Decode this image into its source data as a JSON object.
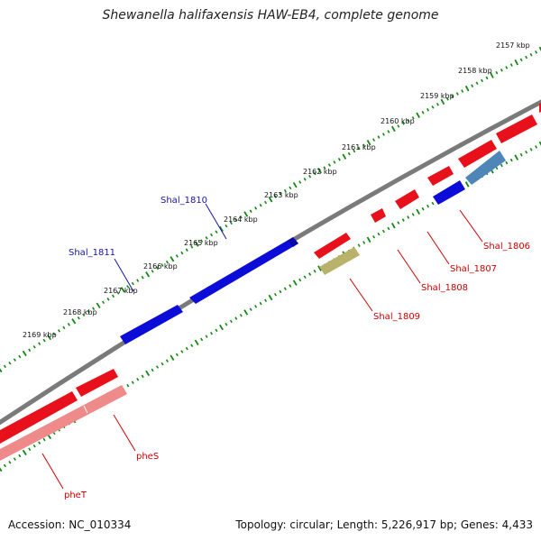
{
  "title": "Shewanella halifaxensis HAW-EB4, complete genome",
  "footer": {
    "accession": "Accession: NC_010334",
    "summary": "Topology: circular; Length: 5,226,917 bp; Genes: 4,433"
  },
  "colors": {
    "backbone": "#7a7a7a",
    "ticks": "#118811",
    "forward_gene": "#e8101a",
    "reverse_gene": "#1010e0",
    "pseudo_light_red": "#ee8a8a",
    "olive": "#b8b26a",
    "steel_blue": "#4f86b8",
    "label_red": "#cc0000",
    "label_blue": "#1515a8"
  },
  "ruler": {
    "labels": [
      "2157 kbp",
      "2158 kbp",
      "2159 kbp",
      "2160 kbp",
      "2161 kbp",
      "2162 kbp",
      "2163 kbp",
      "2164 kbp",
      "2165 kbp",
      "2166 kbp",
      "2167 kbp",
      "2168 kbp",
      "2169 kbp"
    ]
  },
  "genes": [
    {
      "name": "Shal_1806",
      "strand": "forward"
    },
    {
      "name": "Shal_1807",
      "strand": "forward"
    },
    {
      "name": "Shal_1808",
      "strand": "forward"
    },
    {
      "name": "Shal_1809",
      "strand": "forward"
    },
    {
      "name": "Shal_1810",
      "strand": "reverse"
    },
    {
      "name": "Shal_1811",
      "strand": "reverse"
    },
    {
      "name": "pheS",
      "strand": "forward"
    },
    {
      "name": "pheT",
      "strand": "forward"
    }
  ]
}
